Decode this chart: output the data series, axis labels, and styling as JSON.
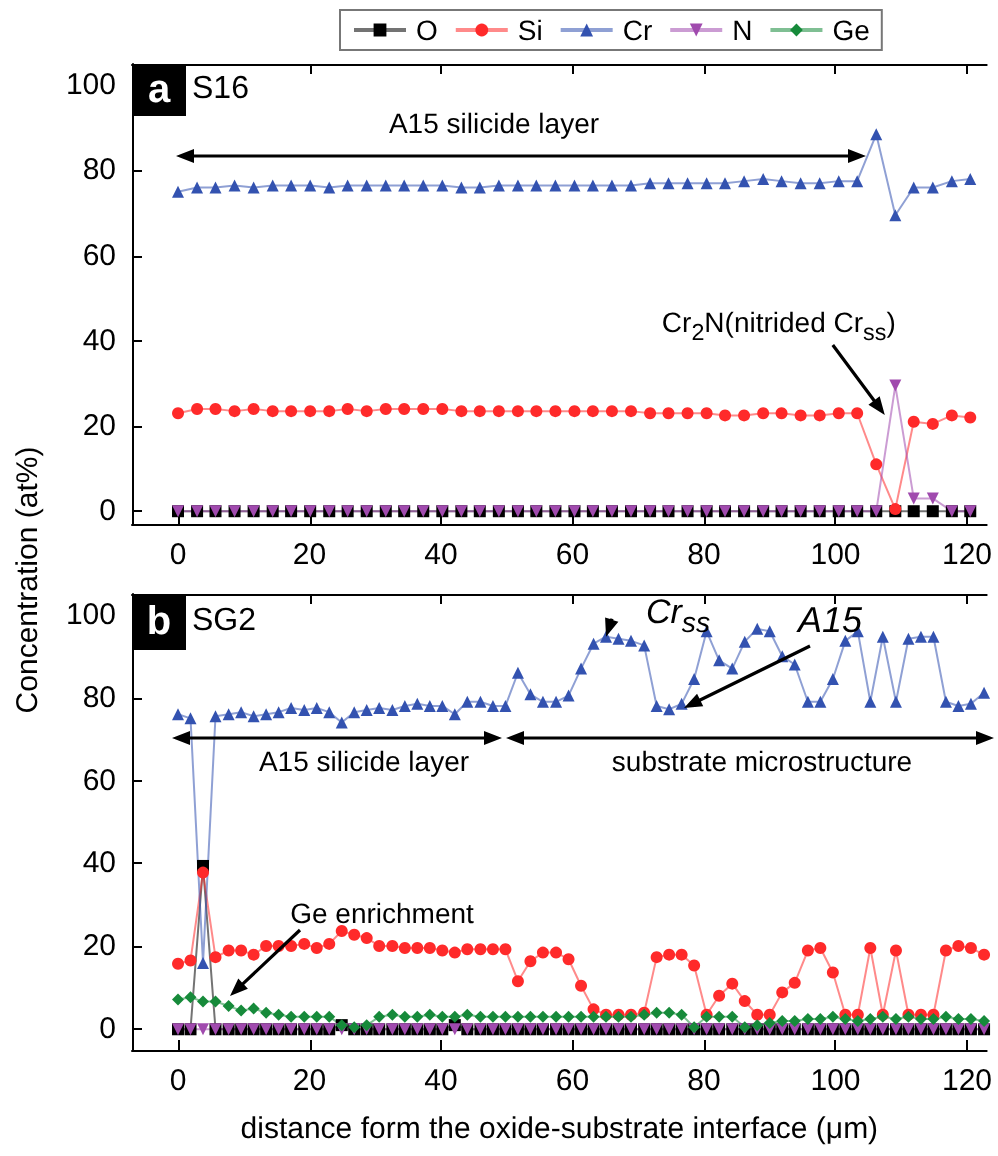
{
  "chart_data": [
    {
      "type": "line",
      "ylabel": "Concentration (at%)",
      "legend": "top",
      "xlim": [
        -7,
        123
      ],
      "xticks": [
        0,
        20,
        40,
        60,
        80,
        100,
        120
      ],
      "ylim": [
        -3,
        105
      ],
      "yticks": [
        0,
        20,
        40,
        60,
        80,
        100
      ],
      "annotations": [
        "a",
        "S16",
        "A15 silicide layer",
        {
          "text": "Cr$_{2}$N(nitrided Cr$_{ss}$)",
          "x": 107.5,
          "y": 22.6
        }
      ],
      "x": [
        0,
        2.9,
        5.7,
        8.6,
        11.5,
        14.4,
        17.2,
        20.1,
        23,
        25.8,
        28.7,
        31.6,
        34.4,
        37.3,
        40.2,
        43.1,
        45.9,
        48.8,
        51.7,
        54.5,
        57.4,
        60.3,
        63.1,
        66,
        68.9,
        71.8,
        74.6,
        77.5,
        80.4,
        83.2,
        86.1,
        89,
        91.8,
        94.7,
        97.6,
        100.5,
        103.3,
        106.2,
        109.1,
        111.9,
        114.8,
        117.7,
        120.5
      ],
      "series": [
        {
          "name": "O",
          "color": "#000000",
          "marker": "square",
          "values": [
            0,
            0,
            0,
            0,
            0,
            0,
            0,
            0,
            0,
            0,
            0,
            0,
            0,
            0,
            0,
            0,
            0,
            0,
            0,
            0,
            0,
            0,
            0,
            0,
            0,
            0,
            0,
            0,
            0,
            0,
            0,
            0,
            0,
            0,
            0,
            0,
            0,
            0,
            0,
            0,
            0,
            0,
            0
          ]
        },
        {
          "name": "Si",
          "color": "#ff2a2a",
          "marker": "circle",
          "values": [
            23,
            24,
            24,
            23.5,
            24,
            23.5,
            23.5,
            23.5,
            23.5,
            24,
            23.5,
            24,
            24,
            24,
            24,
            23.5,
            23.5,
            23.5,
            23.5,
            23.5,
            23.5,
            23.5,
            23.5,
            23.5,
            23.5,
            23,
            23,
            23,
            23,
            22.5,
            22.5,
            23,
            23,
            22.5,
            22.5,
            23,
            23,
            11,
            0.5,
            21,
            20.5,
            22.5,
            22
          ]
        },
        {
          "name": "Cr",
          "color": "#3352b0",
          "marker": "triangle",
          "values": [
            75,
            76,
            76,
            76.5,
            76,
            76.5,
            76.5,
            76.5,
            76,
            76.5,
            76.5,
            76.5,
            76.5,
            76.5,
            76.5,
            76,
            76,
            76.5,
            76.5,
            76.5,
            76.5,
            76.5,
            76.5,
            76.5,
            76.5,
            77,
            77,
            77,
            77,
            77,
            77.5,
            78,
            77.5,
            77,
            77,
            77.5,
            77.5,
            88.5,
            69.5,
            76,
            76,
            77.5,
            78
          ]
        },
        {
          "name": "N",
          "color": "#a04aae",
          "marker": "triangle-down",
          "values": [
            0,
            0,
            0,
            0,
            0,
            0,
            0,
            0,
            0,
            0,
            0,
            0,
            0,
            0,
            0,
            0,
            0,
            0,
            0,
            0,
            0,
            0,
            0,
            0,
            0,
            0,
            0,
            0,
            0,
            0,
            0,
            0,
            0,
            0,
            0,
            0,
            0,
            0,
            29.5,
            3,
            3,
            0,
            0
          ]
        },
        {
          "name": "Ge",
          "color": "#168a3a",
          "marker": "diamond",
          "values": [
            null,
            null,
            null,
            null,
            null,
            null,
            null,
            null,
            null,
            null,
            null,
            null,
            null,
            null,
            null,
            null,
            null,
            null,
            null,
            null,
            null,
            null,
            null,
            null,
            null,
            null,
            null,
            null,
            null,
            null,
            null,
            null,
            null,
            null,
            null,
            null,
            null,
            null,
            null,
            null,
            null,
            null,
            null
          ]
        }
      ]
    },
    {
      "type": "line",
      "xlabel": "distance form the oxide-substrate interface (μm)",
      "xlim": [
        -7,
        123
      ],
      "xticks": [
        0,
        20,
        40,
        60,
        80,
        100,
        120
      ],
      "ylim": [
        -5,
        105
      ],
      "yticks": [
        0,
        20,
        40,
        60,
        80,
        100
      ],
      "annotations": [
        "b",
        "SG2",
        "A15 silicide layer",
        "substrate microstructure",
        {
          "text": "Cr$_{ss}$",
          "x": 65.1,
          "y": 94.7
        },
        "A15",
        "Ge enrichment"
      ],
      "x": [
        0,
        1.9,
        3.8,
        5.7,
        7.7,
        9.6,
        11.5,
        13.4,
        15.3,
        17.2,
        19.2,
        21.1,
        23,
        24.9,
        26.8,
        28.7,
        30.6,
        32.6,
        34.5,
        36.4,
        38.3,
        40.2,
        42.1,
        44,
        46,
        47.9,
        49.8,
        51.7,
        53.6,
        55.5,
        57.5,
        59.4,
        61.3,
        63.2,
        65.1,
        67,
        68.9,
        70.9,
        72.8,
        74.7,
        76.6,
        78.5,
        80.4,
        82.3,
        84.3,
        86.2,
        88.1,
        90,
        91.9,
        93.8,
        95.8,
        97.7,
        99.6,
        101.5,
        103.4,
        105.3,
        107.2,
        109.2,
        111.1,
        113,
        114.9,
        116.8,
        118.7,
        120.6,
        122.6
      ],
      "series": [
        {
          "color": "#000000",
          "marker": "square",
          "values": [
            0,
            0,
            39.4,
            0,
            0,
            0,
            0,
            0,
            0,
            0,
            0,
            0,
            0,
            1,
            0,
            0,
            0,
            0,
            0,
            0,
            0,
            0,
            1,
            0,
            0,
            0,
            0,
            0,
            0,
            0,
            0,
            0,
            0,
            0,
            0,
            0,
            0,
            0,
            0,
            0,
            0,
            0,
            0,
            0,
            0,
            0,
            0,
            0,
            0,
            0,
            0,
            0,
            0,
            0,
            0,
            0,
            0,
            0,
            0,
            0,
            0,
            0,
            0,
            0,
            0
          ]
        },
        {
          "color": "#ff2a2a",
          "marker": "circle",
          "values": [
            15.8,
            16.6,
            37.8,
            17.4,
            19,
            19,
            18,
            20.1,
            20.1,
            20.1,
            20.6,
            19.6,
            20.6,
            23.7,
            22.8,
            22,
            20.1,
            20.1,
            19.6,
            19.6,
            19.6,
            19,
            18.5,
            19.3,
            19.3,
            19.3,
            19.3,
            11.6,
            16.4,
            18.5,
            18.5,
            16.9,
            10.5,
            4.8,
            3.5,
            3.5,
            3.5,
            4,
            17.4,
            18,
            18,
            15.4,
            3.5,
            8.1,
            11,
            6.8,
            3.5,
            3.5,
            8.9,
            11.2,
            19,
            19.6,
            13.7,
            3.5,
            3.5,
            19.6,
            3.5,
            19,
            3.5,
            3.5,
            3.5,
            19,
            20.1,
            19.6,
            18
          ]
        },
        {
          "color": "#3352b0",
          "marker": "triangle",
          "values": [
            76,
            75,
            16,
            75.5,
            76,
            76.5,
            75.5,
            76,
            76.5,
            77.5,
            77,
            77.5,
            76.5,
            74,
            76.5,
            77,
            77.5,
            77,
            78,
            78.5,
            78,
            78,
            76,
            79,
            79,
            78,
            78,
            86,
            80.8,
            79,
            79,
            80.5,
            87,
            93,
            94.7,
            94.2,
            93.7,
            92.6,
            78,
            77.2,
            78.5,
            84.5,
            96,
            89,
            87,
            93.5,
            96.6,
            96,
            90,
            88,
            79,
            79,
            84.5,
            93.7,
            96,
            79,
            94.7,
            79,
            94.2,
            94.7,
            94.7,
            79,
            78,
            78.5,
            81.2
          ]
        },
        {
          "color": "#a04aae",
          "marker": "triangle-down",
          "values": [
            0,
            0,
            0,
            0,
            0,
            0,
            0,
            0,
            0,
            0,
            0,
            0,
            0,
            0,
            0,
            0,
            0,
            0,
            0,
            0,
            0,
            0,
            0,
            0,
            0,
            0,
            0,
            0,
            0,
            0,
            0,
            0,
            0,
            0,
            0,
            0,
            0,
            0,
            0,
            0,
            0,
            0,
            0,
            0,
            0,
            0,
            0,
            0,
            0,
            0,
            0,
            0,
            0,
            0,
            0,
            0,
            0,
            0,
            0,
            0,
            0,
            0,
            0,
            0,
            0
          ]
        },
        {
          "color": "#168a3a",
          "marker": "diamond",
          "values": [
            7.2,
            7.7,
            6.7,
            6.7,
            5.6,
            4.5,
            5,
            4,
            3.5,
            3,
            3,
            3,
            3,
            1,
            0.5,
            1,
            3,
            3.5,
            3,
            3,
            3.5,
            3,
            3,
            3.5,
            3,
            3,
            3,
            3,
            3,
            3,
            3,
            3,
            3,
            3,
            3,
            3,
            3,
            3.5,
            4,
            4,
            3.5,
            0.5,
            3,
            3,
            3,
            0.5,
            1,
            1.5,
            2,
            2,
            2.5,
            2.5,
            3,
            2.5,
            2,
            2.5,
            3,
            2.5,
            3,
            2.5,
            2.5,
            3,
            2.5,
            2.5,
            2
          ]
        }
      ]
    }
  ]
}
